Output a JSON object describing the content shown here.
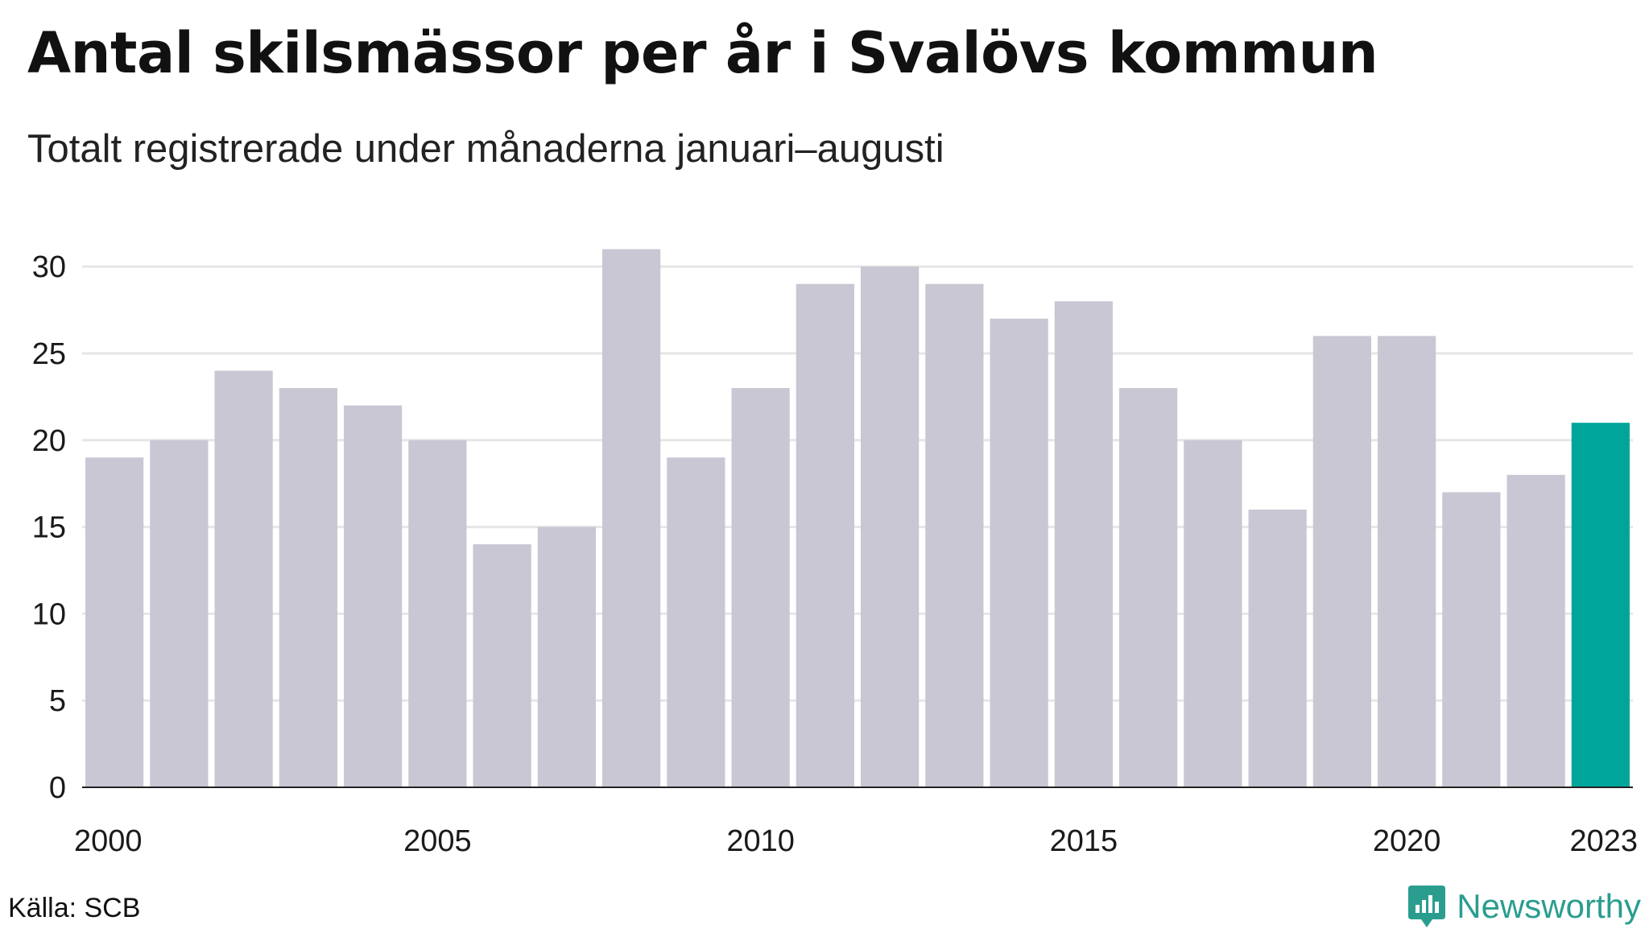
{
  "chart_data": {
    "type": "bar",
    "title": "Antal skilsmässor per år i Svalövs kommun",
    "subtitle": "Totalt registrerade under månaderna januari–augusti",
    "categories": [
      "2000",
      "2001",
      "2002",
      "2003",
      "2004",
      "2005",
      "2006",
      "2007",
      "2008",
      "2009",
      "2010",
      "2011",
      "2012",
      "2013",
      "2014",
      "2015",
      "2016",
      "2017",
      "2018",
      "2019",
      "2020",
      "2021",
      "2022",
      "2023"
    ],
    "values": [
      19,
      20,
      24,
      23,
      22,
      20,
      14,
      15,
      31,
      19,
      23,
      29,
      30,
      29,
      27,
      28,
      23,
      20,
      16,
      26,
      26,
      17,
      18,
      21
    ],
    "x_tick_labels": [
      "2000",
      "2005",
      "2010",
      "2015",
      "2020",
      "2023"
    ],
    "y_ticks": [
      0,
      5,
      10,
      15,
      20,
      25,
      30
    ],
    "ylim": [
      0,
      32
    ],
    "grid": "horizontal",
    "legend": "none",
    "highlight_index": 23,
    "colors": {
      "bar": "#c8c7d3",
      "highlight": "#00a59a",
      "grid": "#e6e6e6",
      "axis": "#222222"
    }
  },
  "footer": {
    "source": "Källa: SCB",
    "brand": "Newsworthy",
    "brand_icon": "newsworthy-logo-icon",
    "brand_color": "#2a9d8f"
  }
}
